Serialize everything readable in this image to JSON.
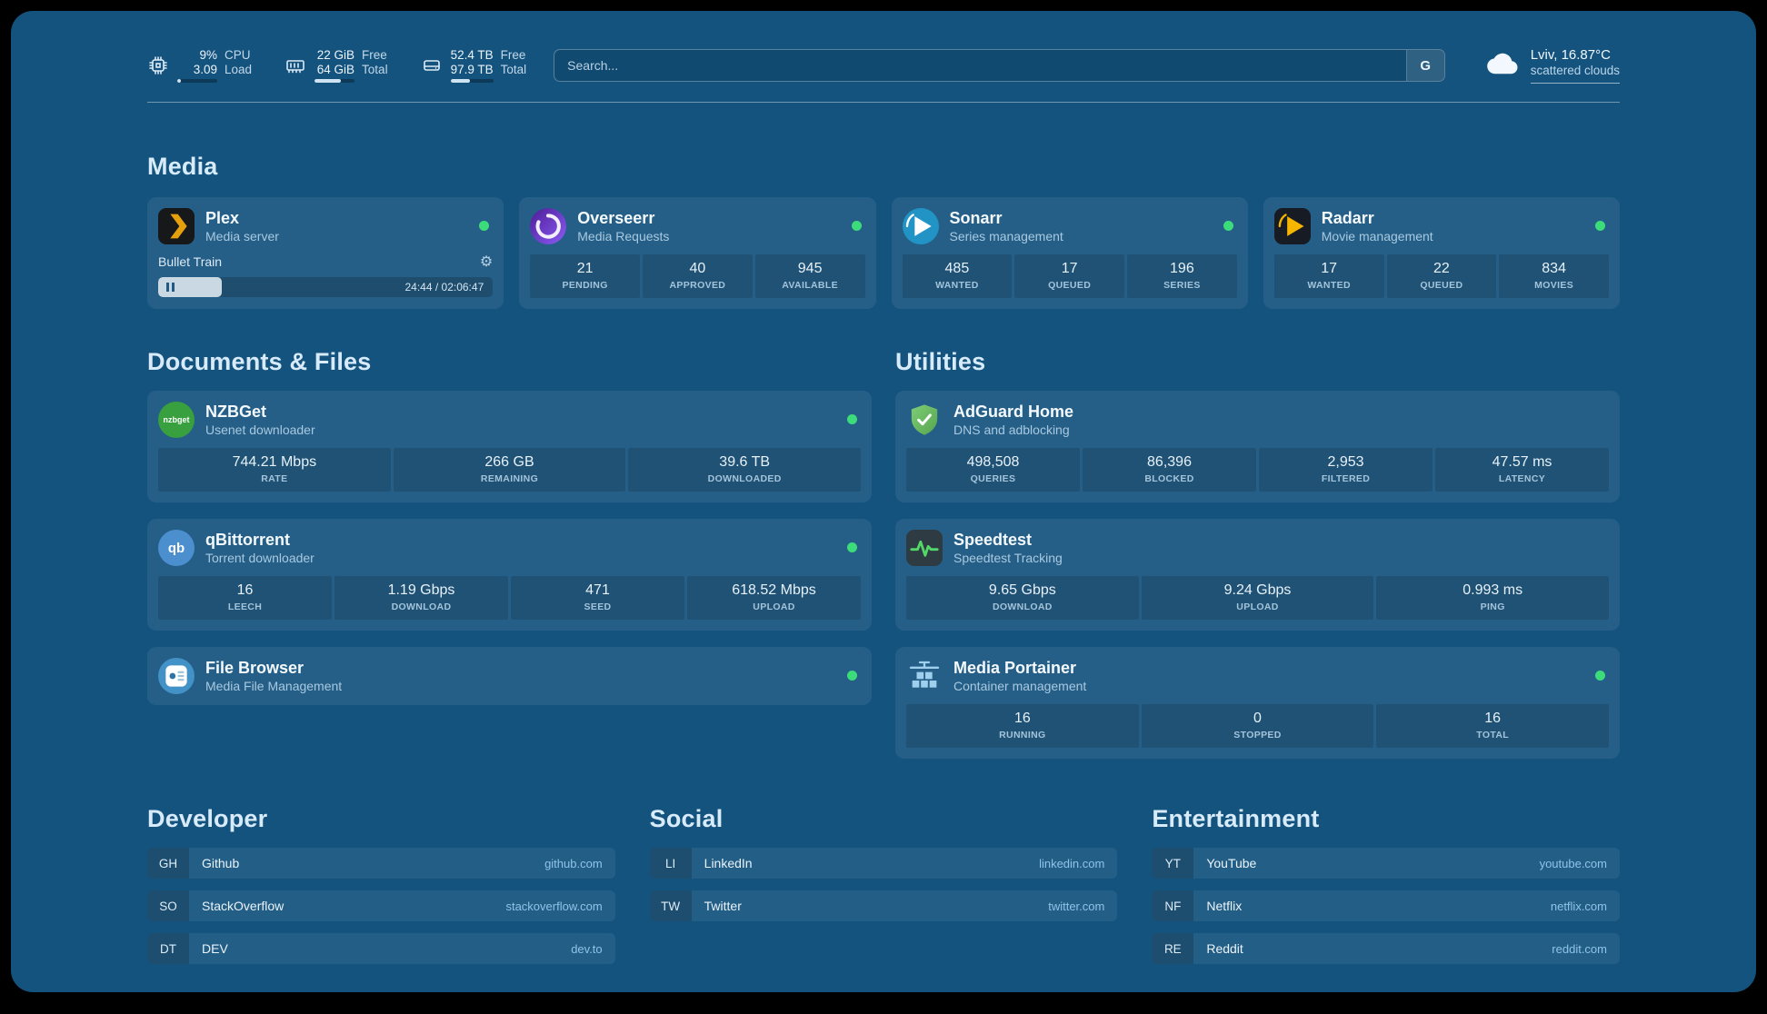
{
  "colors": {
    "background": "#14537E",
    "online_green": "#3DDC7A",
    "domain_link": "#8FC3EA",
    "plex_amber": "#E5A00D"
  },
  "topbar": {
    "resources": [
      {
        "name": "cpu",
        "values": [
          "9%",
          "3.09"
        ],
        "labels": [
          "CPU",
          "Load"
        ],
        "percent": 9
      },
      {
        "name": "memory",
        "values": [
          "22 GiB",
          "64 GiB"
        ],
        "labels": [
          "Free",
          "Total"
        ],
        "percent": 66
      },
      {
        "name": "disk",
        "values": [
          "52.4 TB",
          "97.9 TB"
        ],
        "labels": [
          "Free",
          "Total"
        ],
        "percent": 46
      }
    ],
    "search": {
      "placeholder": "Search...",
      "provider_button": "G"
    },
    "weather": {
      "location": "Lviv, 16.87°C",
      "condition": "scattered clouds"
    }
  },
  "media": {
    "title": "Media",
    "services": [
      {
        "name": "Plex",
        "subtitle": "Media server",
        "online": true,
        "player": {
          "track": "Bullet Train",
          "time": "24:44 / 02:06:47",
          "progress_percent": 19
        }
      },
      {
        "name": "Overseerr",
        "subtitle": "Media Requests",
        "online": true,
        "stats": [
          {
            "value": "21",
            "label": "PENDING"
          },
          {
            "value": "40",
            "label": "APPROVED"
          },
          {
            "value": "945",
            "label": "AVAILABLE"
          }
        ]
      },
      {
        "name": "Sonarr",
        "subtitle": "Series management",
        "online": true,
        "stats": [
          {
            "value": "485",
            "label": "WANTED"
          },
          {
            "value": "17",
            "label": "QUEUED"
          },
          {
            "value": "196",
            "label": "SERIES"
          }
        ]
      },
      {
        "name": "Radarr",
        "subtitle": "Movie management",
        "online": true,
        "stats": [
          {
            "value": "17",
            "label": "WANTED"
          },
          {
            "value": "22",
            "label": "QUEUED"
          },
          {
            "value": "834",
            "label": "MOVIES"
          }
        ]
      }
    ]
  },
  "documents": {
    "title": "Documents & Files",
    "services": [
      {
        "name": "NZBGet",
        "subtitle": "Usenet downloader",
        "online": true,
        "icon_text": "nzbget",
        "stats": [
          {
            "value": "744.21 Mbps",
            "label": "RATE"
          },
          {
            "value": "266 GB",
            "label": "REMAINING"
          },
          {
            "value": "39.6 TB",
            "label": "DOWNLOADED"
          }
        ]
      },
      {
        "name": "qBittorrent",
        "subtitle": "Torrent downloader",
        "online": true,
        "icon_text": "qb",
        "stats": [
          {
            "value": "16",
            "label": "LEECH"
          },
          {
            "value": "1.19 Gbps",
            "label": "DOWNLOAD"
          },
          {
            "value": "471",
            "label": "SEED"
          },
          {
            "value": "618.52 Mbps",
            "label": "UPLOAD"
          }
        ]
      },
      {
        "name": "File Browser",
        "subtitle": "Media File Management",
        "online": true
      }
    ]
  },
  "utilities": {
    "title": "Utilities",
    "services": [
      {
        "name": "AdGuard Home",
        "subtitle": "DNS and adblocking",
        "stats": [
          {
            "value": "498,508",
            "label": "QUERIES"
          },
          {
            "value": "86,396",
            "label": "BLOCKED"
          },
          {
            "value": "2,953",
            "label": "FILTERED"
          },
          {
            "value": "47.57 ms",
            "label": "LATENCY"
          }
        ]
      },
      {
        "name": "Speedtest",
        "subtitle": "Speedtest Tracking",
        "stats": [
          {
            "value": "9.65 Gbps",
            "label": "DOWNLOAD"
          },
          {
            "value": "9.24 Gbps",
            "label": "UPLOAD"
          },
          {
            "value": "0.993 ms",
            "label": "PING"
          }
        ]
      },
      {
        "name": "Media Portainer",
        "subtitle": "Container management",
        "online": true,
        "stats": [
          {
            "value": "16",
            "label": "RUNNING"
          },
          {
            "value": "0",
            "label": "STOPPED"
          },
          {
            "value": "16",
            "label": "TOTAL"
          }
        ]
      }
    ]
  },
  "bookmarks": [
    {
      "title": "Developer",
      "items": [
        {
          "abbr": "GH",
          "name": "Github",
          "domain": "github.com"
        },
        {
          "abbr": "SO",
          "name": "StackOverflow",
          "domain": "stackoverflow.com"
        },
        {
          "abbr": "DT",
          "name": "DEV",
          "domain": "dev.to"
        }
      ]
    },
    {
      "title": "Social",
      "items": [
        {
          "abbr": "LI",
          "name": "LinkedIn",
          "domain": "linkedin.com"
        },
        {
          "abbr": "TW",
          "name": "Twitter",
          "domain": "twitter.com"
        }
      ]
    },
    {
      "title": "Entertainment",
      "items": [
        {
          "abbr": "YT",
          "name": "YouTube",
          "domain": "youtube.com"
        },
        {
          "abbr": "NF",
          "name": "Netflix",
          "domain": "netflix.com"
        },
        {
          "abbr": "RE",
          "name": "Reddit",
          "domain": "reddit.com"
        }
      ]
    }
  ]
}
